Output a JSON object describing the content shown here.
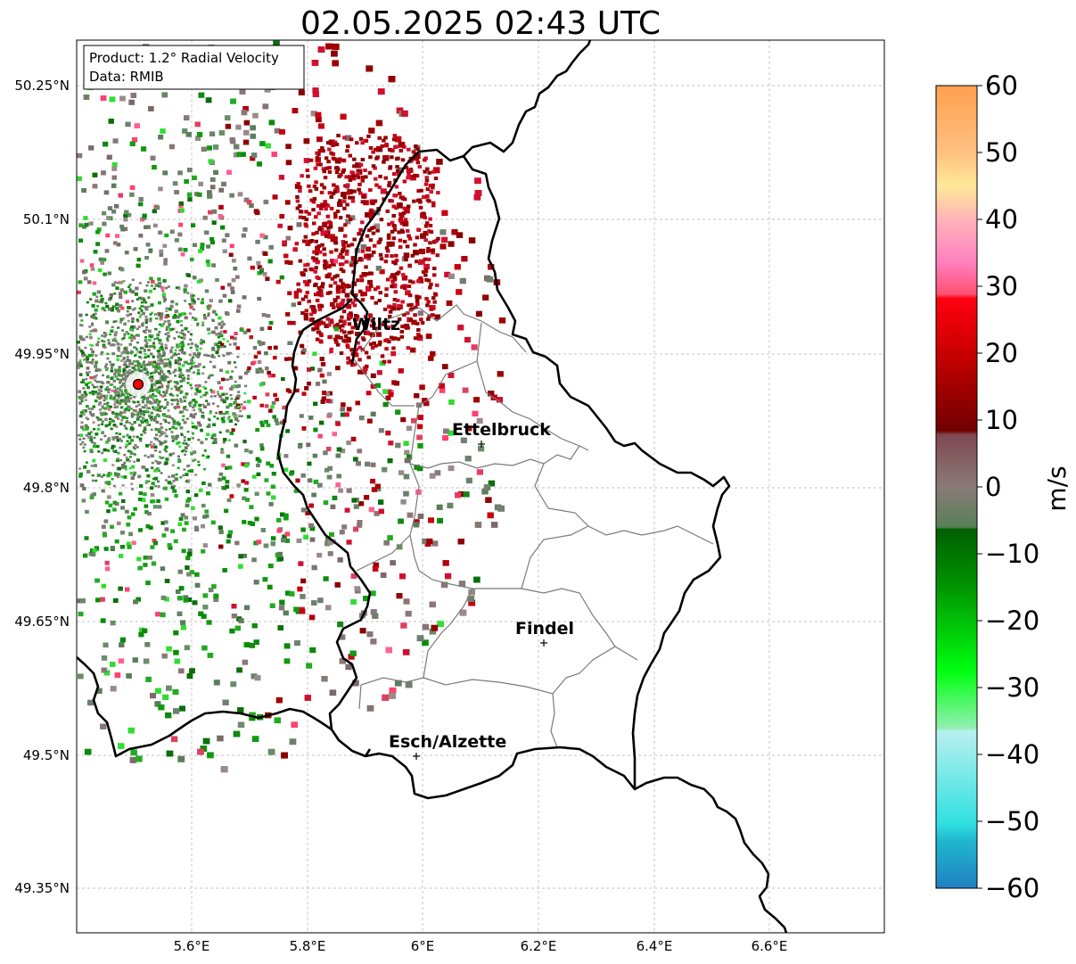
{
  "map": {
    "title": "02.05.2025 02:43 UTC",
    "info_box": {
      "product": "Product: 1.2° Radial Velocity",
      "data": "Data: RMIB"
    },
    "lat_ticks": [
      "50.25°N",
      "50.1°N",
      "49.95°N",
      "49.8°N",
      "49.65°N",
      "49.5°N",
      "49.35°N"
    ],
    "lon_ticks": [
      "5.6°E",
      "5.8°E",
      "6°E",
      "6.2°E",
      "6.4°E",
      "6.6°E"
    ],
    "extent": {
      "lon_min": 5.4,
      "lon_max": 6.79,
      "lat_min": 49.3,
      "lat_max": 50.3
    },
    "cities": [
      {
        "name": "Wiltz",
        "lon": 5.93,
        "lat": 49.97
      },
      {
        "name": "Ettelbruck",
        "lon": 6.1,
        "lat": 49.85
      },
      {
        "name": "Findel",
        "lon": 6.21,
        "lat": 49.63
      },
      {
        "name": "Esch/Alzette",
        "lon": 5.99,
        "lat": 49.5
      }
    ],
    "radar_site": {
      "lon": 5.505,
      "lat": 49.915
    }
  },
  "colorbar": {
    "label": "m/s",
    "min": -60,
    "max": 60,
    "ticks": [
      "60",
      "50",
      "40",
      "30",
      "20",
      "10",
      "0",
      "−10",
      "−20",
      "−30",
      "−40",
      "−50",
      "−60"
    ],
    "colors": {
      "top": "#ffa050",
      "peach": "#ffd890",
      "pink": "#ff80c0",
      "red": "#ff2040",
      "bright_red": "#ee0000",
      "dark_red": "#700000",
      "neutral": "#8a7070",
      "gray_green": "#608060",
      "dark_green": "#006400",
      "green": "#00cc00",
      "bright_green": "#00ff20",
      "light_green": "#80f0a0",
      "light_cyan": "#b0f0f0",
      "cyan": "#30e0e0",
      "blue": "#2080c0"
    }
  }
}
